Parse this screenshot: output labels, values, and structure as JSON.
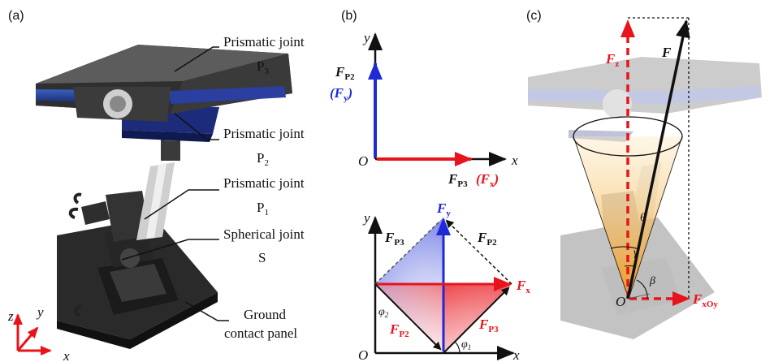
{
  "panels": {
    "a": {
      "tag": "(a)",
      "annotations": [
        {
          "line1": "Prismatic joint",
          "line2": "P",
          "sub": "3"
        },
        {
          "line1": "Prismatic joint",
          "line2": "P",
          "sub": "2"
        },
        {
          "line1": "Prismatic joint",
          "line2": "P",
          "sub": "1"
        },
        {
          "line1": "Spherical joint",
          "line2": "S",
          "sub": ""
        },
        {
          "line1": "Ground",
          "line2": "contact panel",
          "sub": ""
        }
      ],
      "axes": {
        "x": "x",
        "y": "y",
        "z": "z"
      }
    },
    "b": {
      "tag": "(b)",
      "top": {
        "origin": "O",
        "x": "x",
        "y": "y",
        "fp2": {
          "main": "F",
          "sub": "P2"
        },
        "fy": {
          "open": "(",
          "main": "F",
          "sub": "y",
          "close": ")"
        },
        "fp3": {
          "main": "F",
          "sub": "P3"
        },
        "fx": {
          "open": "(",
          "main": "F",
          "sub": "x",
          "close": ")"
        }
      },
      "bottom": {
        "origin": "O",
        "x": "x",
        "y": "y",
        "fy": {
          "main": "F",
          "sub": "y"
        },
        "fx": {
          "main": "F",
          "sub": "x"
        },
        "fp3_upper": {
          "main": "F",
          "sub": "P3"
        },
        "fp2_upper": {
          "main": "F",
          "sub": "P2"
        },
        "fp2_lower": {
          "main": "F",
          "sub": "P2"
        },
        "fp3_lower": {
          "main": "F",
          "sub": "P3"
        },
        "phi1": {
          "main": "φ",
          "sub": "1"
        },
        "phi2": {
          "main": "φ",
          "sub": "2"
        }
      }
    },
    "c": {
      "tag": "(c)",
      "f": "F",
      "fz": {
        "main": "F",
        "sub": "z"
      },
      "fxoy": {
        "main": "F",
        "sub": "xOy"
      },
      "origin": "O",
      "theta": "θ",
      "gamma": "γ",
      "beta": "β"
    }
  },
  "colors": {
    "red": "#e8141b",
    "blue": "#1f2ad6",
    "black": "#111111",
    "cone": "#f6c86a"
  }
}
